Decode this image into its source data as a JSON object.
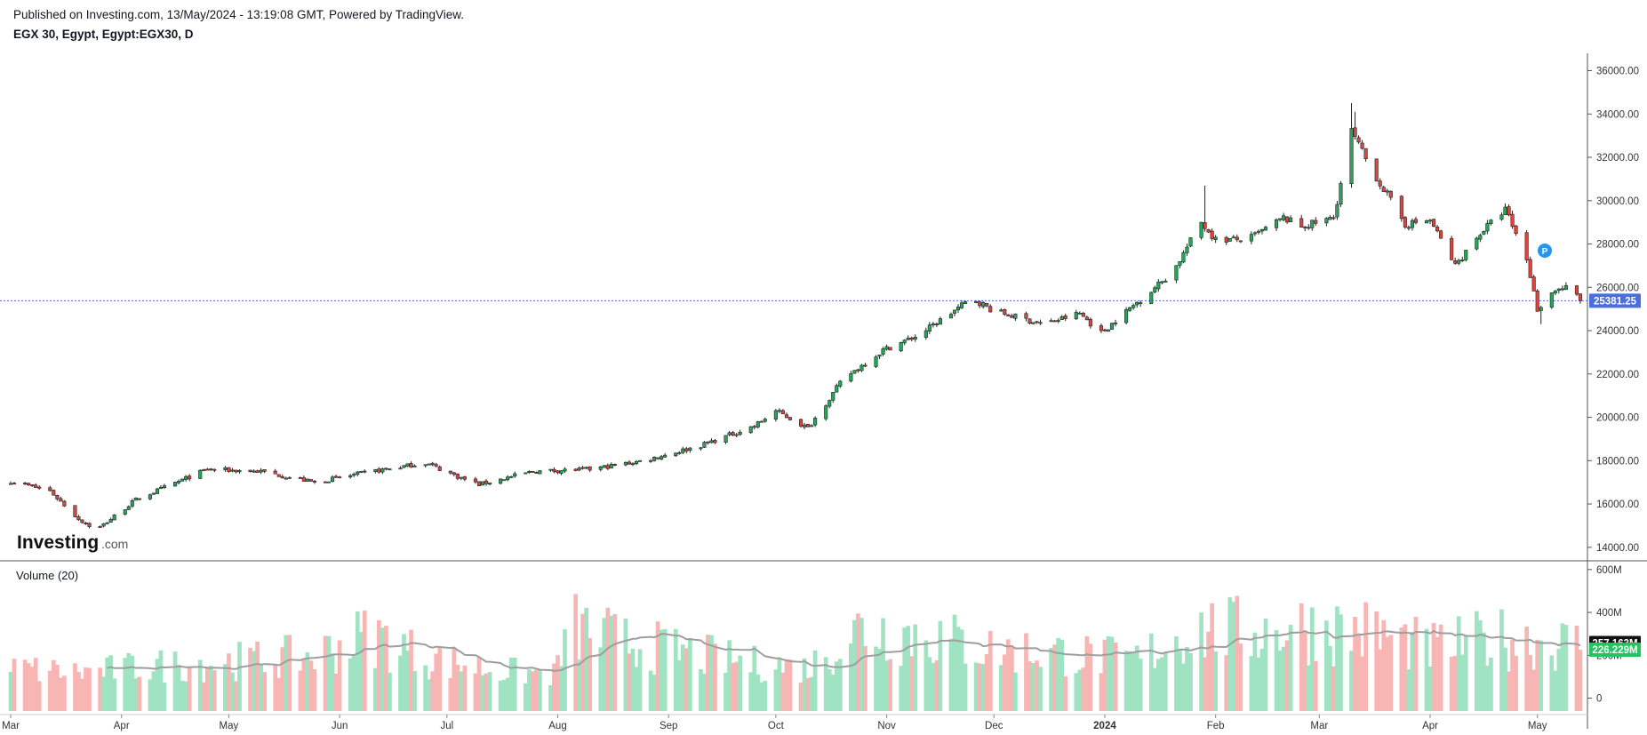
{
  "header": {
    "published": "Published on Investing.com, 13/May/2024 - 13:19:08 GMT, Powered by TradingView.",
    "symbol": "EGX 30, Egypt, Egypt:EGX30, D"
  },
  "logo": {
    "main": "Investing",
    "suffix": ".com"
  },
  "colors": {
    "up": "#26a65b",
    "down": "#e0443e",
    "vol_up": "#9fe3c2",
    "vol_down": "#f7b6b4",
    "ma": "#9e9e9e",
    "last": "#4a6ee0"
  },
  "chart_data": [
    {
      "type": "candlestick",
      "title": "EGX 30, Egypt, Egypt:EGX30, D",
      "ylim": [
        13500,
        36800
      ],
      "yticks": [
        "14000.00",
        "16000.00",
        "18000.00",
        "20000.00",
        "22000.00",
        "24000.00",
        "26000.00",
        "28000.00",
        "30000.00",
        "32000.00",
        "34000.00",
        "36000.00"
      ],
      "last_price": "25381.25",
      "anchors": [
        [
          "2023-03-01",
          17050
        ],
        [
          "2023-03-12",
          16600
        ],
        [
          "2023-03-20",
          15300
        ],
        [
          "2023-03-25",
          14800
        ],
        [
          "2023-04-05",
          16200
        ],
        [
          "2023-04-15",
          16900
        ],
        [
          "2023-04-25",
          17600
        ],
        [
          "2023-05-10",
          17500
        ],
        [
          "2023-05-25",
          17000
        ],
        [
          "2023-06-10",
          17500
        ],
        [
          "2023-06-25",
          17900
        ],
        [
          "2023-07-05",
          17200
        ],
        [
          "2023-07-10",
          16900
        ],
        [
          "2023-07-25",
          17500
        ],
        [
          "2023-08-10",
          17600
        ],
        [
          "2023-08-25",
          18000
        ],
        [
          "2023-09-10",
          18700
        ],
        [
          "2023-09-25",
          19600
        ],
        [
          "2023-10-01",
          20300
        ],
        [
          "2023-10-10",
          19500
        ],
        [
          "2023-10-20",
          21800
        ],
        [
          "2023-10-31",
          23100
        ],
        [
          "2023-11-10",
          23800
        ],
        [
          "2023-11-25",
          25500
        ],
        [
          "2023-12-01",
          24900
        ],
        [
          "2023-12-15",
          24300
        ],
        [
          "2023-12-25",
          24800
        ],
        [
          "2023-12-31",
          23900
        ],
        [
          "2024-01-10",
          25300
        ],
        [
          "2024-01-20",
          26700
        ],
        [
          "2024-01-28",
          29000
        ],
        [
          "2024-02-01",
          28200
        ],
        [
          "2024-02-10",
          28200
        ],
        [
          "2024-02-20",
          29200
        ],
        [
          "2024-02-25",
          28800
        ],
        [
          "2024-03-05",
          29200
        ],
        [
          "2024-03-10",
          33200
        ],
        [
          "2024-03-15",
          31600
        ],
        [
          "2024-03-25",
          28900
        ],
        [
          "2024-04-01",
          29100
        ],
        [
          "2024-04-08",
          27000
        ],
        [
          "2024-04-15",
          28500
        ],
        [
          "2024-04-22",
          29600
        ],
        [
          "2024-04-28",
          27300
        ],
        [
          "2024-05-01",
          25000
        ],
        [
          "2024-05-06",
          25900
        ],
        [
          "2024-05-10",
          26000
        ],
        [
          "2024-05-13",
          25381
        ]
      ],
      "overrides": [
        [
          "2023-10-07",
          18500,
          null
        ],
        [
          "2024-01-29",
          null,
          30700
        ],
        [
          "2024-02-02",
          26600,
          null
        ],
        [
          "2024-03-10",
          null,
          34500
        ],
        [
          "2024-03-11",
          null,
          34100
        ],
        [
          "2024-05-02",
          24300,
          null
        ]
      ],
      "x_labels": [
        [
          "2023-03-01",
          "Mar"
        ],
        [
          "2023-04-01",
          "Apr"
        ],
        [
          "2023-05-01",
          "May"
        ],
        [
          "2023-06-01",
          "Jun"
        ],
        [
          "2023-07-01",
          "Jul"
        ],
        [
          "2023-08-01",
          "Aug"
        ],
        [
          "2023-09-01",
          "Sep"
        ],
        [
          "2023-10-01",
          "Oct"
        ],
        [
          "2023-11-01",
          "Nov"
        ],
        [
          "2023-12-01",
          "Dec"
        ],
        [
          "2024-01-01",
          "2024"
        ],
        [
          "2024-02-01",
          "Feb"
        ],
        [
          "2024-03-01",
          "Mar"
        ],
        [
          "2024-04-01",
          "Apr"
        ],
        [
          "2024-05-01",
          "May"
        ]
      ]
    },
    {
      "type": "bar",
      "title": "Volume (20)",
      "ylim": [
        -60,
        620
      ],
      "yticks": [
        "0",
        "200M",
        "400M",
        "600M"
      ],
      "ma_last": "257.163M",
      "vol_last": "226.229M",
      "vol_anchors": [
        [
          "2023-03-01",
          140
        ],
        [
          "2023-03-20",
          120
        ],
        [
          "2023-04-10",
          150
        ],
        [
          "2023-05-01",
          170
        ],
        [
          "2023-05-25",
          200
        ],
        [
          "2023-06-10",
          300
        ],
        [
          "2023-06-25",
          190
        ],
        [
          "2023-07-15",
          130
        ],
        [
          "2023-07-31",
          110
        ],
        [
          "2023-08-05",
          330
        ],
        [
          "2023-08-20",
          260
        ],
        [
          "2023-09-10",
          200
        ],
        [
          "2023-09-25",
          160
        ],
        [
          "2023-10-10",
          140
        ],
        [
          "2023-10-25",
          330
        ],
        [
          "2023-11-10",
          300
        ],
        [
          "2023-11-30",
          230
        ],
        [
          "2023-12-20",
          210
        ],
        [
          "2024-01-10",
          180
        ],
        [
          "2024-01-25",
          320
        ],
        [
          "2024-02-10",
          310
        ],
        [
          "2024-02-25",
          330
        ],
        [
          "2024-03-15",
          310
        ],
        [
          "2024-04-01",
          230
        ],
        [
          "2024-04-20",
          280
        ],
        [
          "2024-05-13",
          250
        ]
      ]
    }
  ]
}
